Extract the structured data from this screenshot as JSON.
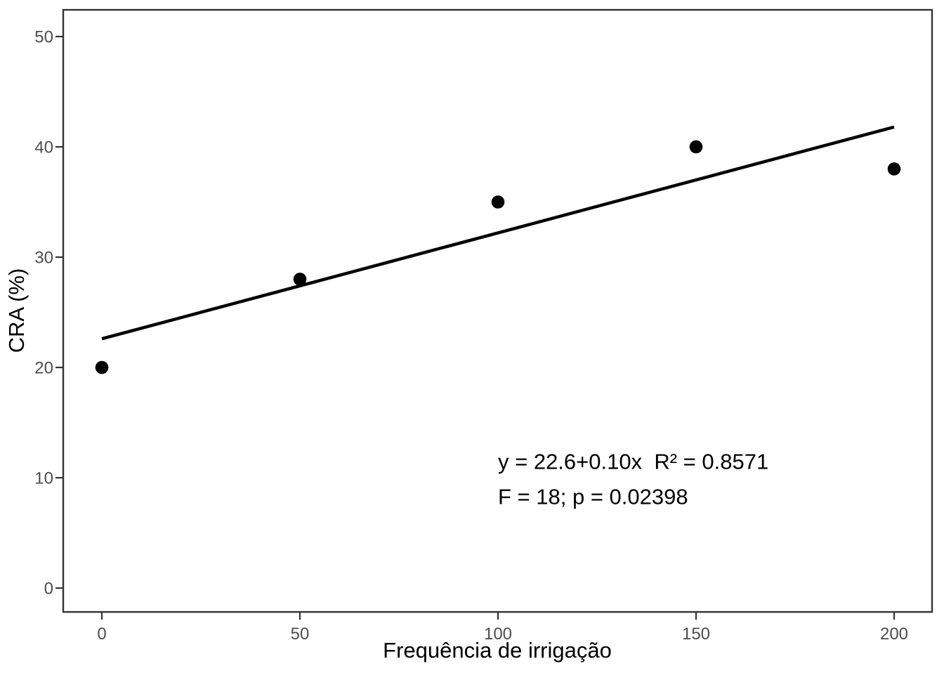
{
  "figure": {
    "background": "#ffffff"
  },
  "chart_data": {
    "type": "scatter",
    "title": "",
    "xlabel": "Frequência de irrigação",
    "ylabel": "CRA (%)",
    "x": [
      0,
      50,
      100,
      150,
      200
    ],
    "y": [
      20,
      28,
      35,
      40,
      38
    ],
    "x_ticks": [
      0,
      50,
      100,
      150,
      200
    ],
    "y_ticks": [
      0,
      10,
      20,
      30,
      40,
      50
    ],
    "xlim": [
      -10,
      210
    ],
    "ylim": [
      -2.5,
      52.5
    ],
    "grid": "off",
    "legend": "none",
    "trend_line": {
      "x_start": 0,
      "y_start": 22.6,
      "x_end": 200,
      "y_end": 41.8
    },
    "annotations": [
      {
        "text": "y = 22.6+0.10x  R² = 0.8571",
        "x": 100,
        "y": 10.8
      },
      {
        "text": "F = 18; p = 0.02398",
        "x": 100,
        "y": 7.6
      }
    ],
    "colors": {
      "point": "#000000",
      "trend_line": "#000000",
      "panel_border": "#333333",
      "tick_mark": "#333333",
      "tick_label": "#4d4d4d",
      "axis_title": "#000000",
      "annotation": "#000000",
      "background": "#ffffff"
    }
  }
}
